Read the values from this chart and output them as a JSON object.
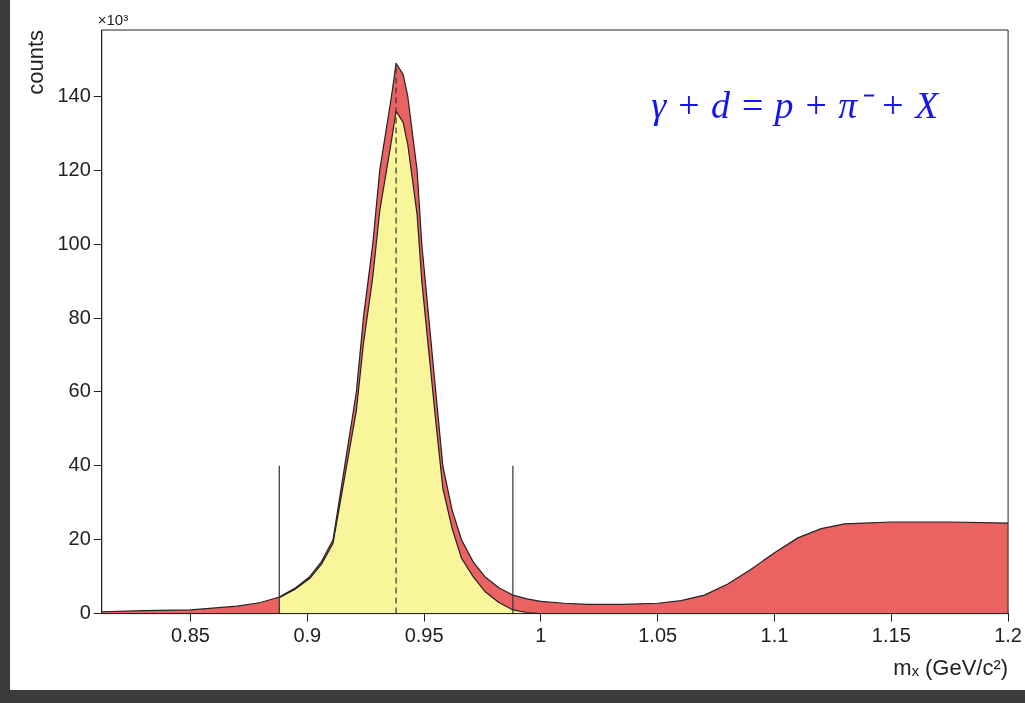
{
  "chart_data": {
    "type": "area",
    "xlabel": "mₓ (GeV/c²)",
    "ylabel": "counts",
    "annotations": [
      "×10³",
      "γ + d = p + π⁻ + X"
    ],
    "x": [
      0.812,
      0.83,
      0.85,
      0.87,
      0.88,
      0.888,
      0.895,
      0.901,
      0.906,
      0.911,
      0.916,
      0.921,
      0.924,
      0.928,
      0.931,
      0.936,
      0.938,
      0.941,
      0.943,
      0.947,
      0.949,
      0.952,
      0.955,
      0.958,
      0.962,
      0.966,
      0.971,
      0.976,
      0.982,
      0.988,
      0.994,
      1.0,
      1.01,
      1.02,
      1.035,
      1.05,
      1.06,
      1.07,
      1.08,
      1.09,
      1.1,
      1.11,
      1.12,
      1.13,
      1.15,
      1.175,
      1.2
    ],
    "series": [
      {
        "color": "#eb6262",
        "values": [
          0.5,
          0.8,
          1,
          2,
          3,
          4.5,
          7,
          10,
          14,
          20,
          40,
          60,
          80,
          100,
          120,
          140,
          149,
          146,
          140,
          120,
          100,
          80,
          60,
          40,
          28,
          20,
          14,
          10,
          7,
          5,
          4,
          3.3,
          2.8,
          2.5,
          2.5,
          2.8,
          3.5,
          5,
          8,
          12,
          16.5,
          20.5,
          23,
          24.3,
          24.8,
          24.8,
          24.5
        ]
      },
      {
        "color": "#f8f59a",
        "values": [
          null,
          null,
          null,
          null,
          null,
          4.3,
          6.7,
          9.5,
          13.3,
          19,
          37,
          55,
          73,
          91,
          109,
          128,
          136,
          133,
          127,
          108,
          90,
          71,
          52,
          34,
          23,
          15,
          10,
          6,
          3,
          1,
          0.3,
          0,
          null,
          null,
          null,
          null,
          null,
          null,
          null,
          null,
          null,
          null,
          null,
          null,
          null,
          null,
          null
        ]
      },
      {
        "type": "line",
        "color": "#333333",
        "x": [
          0.888,
          0.888
        ],
        "values": [
          0,
          40
        ]
      },
      {
        "type": "line",
        "color": "#333333",
        "x": [
          0.988,
          0.988
        ],
        "values": [
          0,
          40
        ]
      },
      {
        "type": "line",
        "color": "#333333",
        "line_style": "dashed",
        "x": [
          0.938,
          0.938
        ],
        "values": [
          0,
          149
        ]
      }
    ],
    "xlim": [
      0.812,
      1.2
    ],
    "xticks": [
      0.85,
      0.9,
      0.95,
      1,
      1.05,
      1.1,
      1.15,
      1.2
    ],
    "ylim": [
      0,
      158
    ],
    "yticks": [
      0,
      20,
      40,
      60,
      80,
      100,
      120,
      140
    ],
    "grid": false,
    "legend": false,
    "marker": "none"
  }
}
